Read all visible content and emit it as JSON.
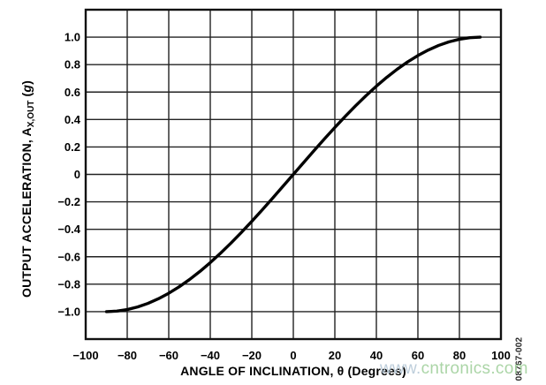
{
  "chart_data": {
    "type": "line",
    "title": "",
    "xlabel": "ANGLE OF INCLINATION, θ (Degrees)",
    "ylabel": {
      "prefix": "OUTPUT ACCELERATION, A",
      "subscript": "X,OUT",
      "mid": " (",
      "italic_g": "g",
      "close": ")"
    },
    "xlim": [
      -100,
      100
    ],
    "ylim": [
      -1.2,
      1.2
    ],
    "grid": true,
    "xticks": [
      {
        "v": -100,
        "label": "−100"
      },
      {
        "v": -80,
        "label": "−80"
      },
      {
        "v": -60,
        "label": "−60"
      },
      {
        "v": -40,
        "label": "−40"
      },
      {
        "v": -20,
        "label": "−20"
      },
      {
        "v": 0,
        "label": "0"
      },
      {
        "v": 20,
        "label": "20"
      },
      {
        "v": 40,
        "label": "40"
      },
      {
        "v": 60,
        "label": "60"
      },
      {
        "v": 80,
        "label": "80"
      },
      {
        "v": 100,
        "label": "100"
      }
    ],
    "yticks": [
      {
        "v": 1.0,
        "label": "1.0"
      },
      {
        "v": 0.8,
        "label": "0.8"
      },
      {
        "v": 0.6,
        "label": "0.6"
      },
      {
        "v": 0.4,
        "label": "0.4"
      },
      {
        "v": 0.2,
        "label": "0.2"
      },
      {
        "v": 0.0,
        "label": "0"
      },
      {
        "v": -0.2,
        "label": "−0.2"
      },
      {
        "v": -0.4,
        "label": "−0.4"
      },
      {
        "v": -0.6,
        "label": "−0.6"
      },
      {
        "v": -0.8,
        "label": "−0.8"
      },
      {
        "v": -1.0,
        "label": "−1.0"
      }
    ],
    "series": [
      {
        "name": "output_acceleration_sine",
        "x": [
          -90,
          -85,
          -80,
          -75,
          -70,
          -65,
          -60,
          -55,
          -50,
          -45,
          -40,
          -35,
          -30,
          -25,
          -20,
          -15,
          -10,
          -5,
          0,
          5,
          10,
          15,
          20,
          25,
          30,
          35,
          40,
          45,
          50,
          55,
          60,
          65,
          70,
          75,
          80,
          85,
          90
        ],
        "y": [
          -1.0,
          -0.9962,
          -0.9848,
          -0.9659,
          -0.9397,
          -0.9063,
          -0.866,
          -0.8192,
          -0.766,
          -0.7071,
          -0.6428,
          -0.5736,
          -0.5,
          -0.4226,
          -0.342,
          -0.2588,
          -0.1736,
          -0.0872,
          0.0,
          0.0872,
          0.1736,
          0.2588,
          0.342,
          0.4226,
          0.5,
          0.5736,
          0.6428,
          0.7071,
          0.766,
          0.8192,
          0.866,
          0.9063,
          0.9397,
          0.9659,
          0.9848,
          0.9962,
          1.0
        ]
      }
    ],
    "colors": {
      "curve": "#000000",
      "grid": "#222222",
      "frame": "#111111",
      "tick_text": "#000000"
    },
    "legend": null
  },
  "watermark": {
    "www": "www.",
    "domain": "cntronics.com",
    "www_color": "#b7c9d8",
    "domain_color": "#a3d19e"
  },
  "figure_code": "08767-002"
}
